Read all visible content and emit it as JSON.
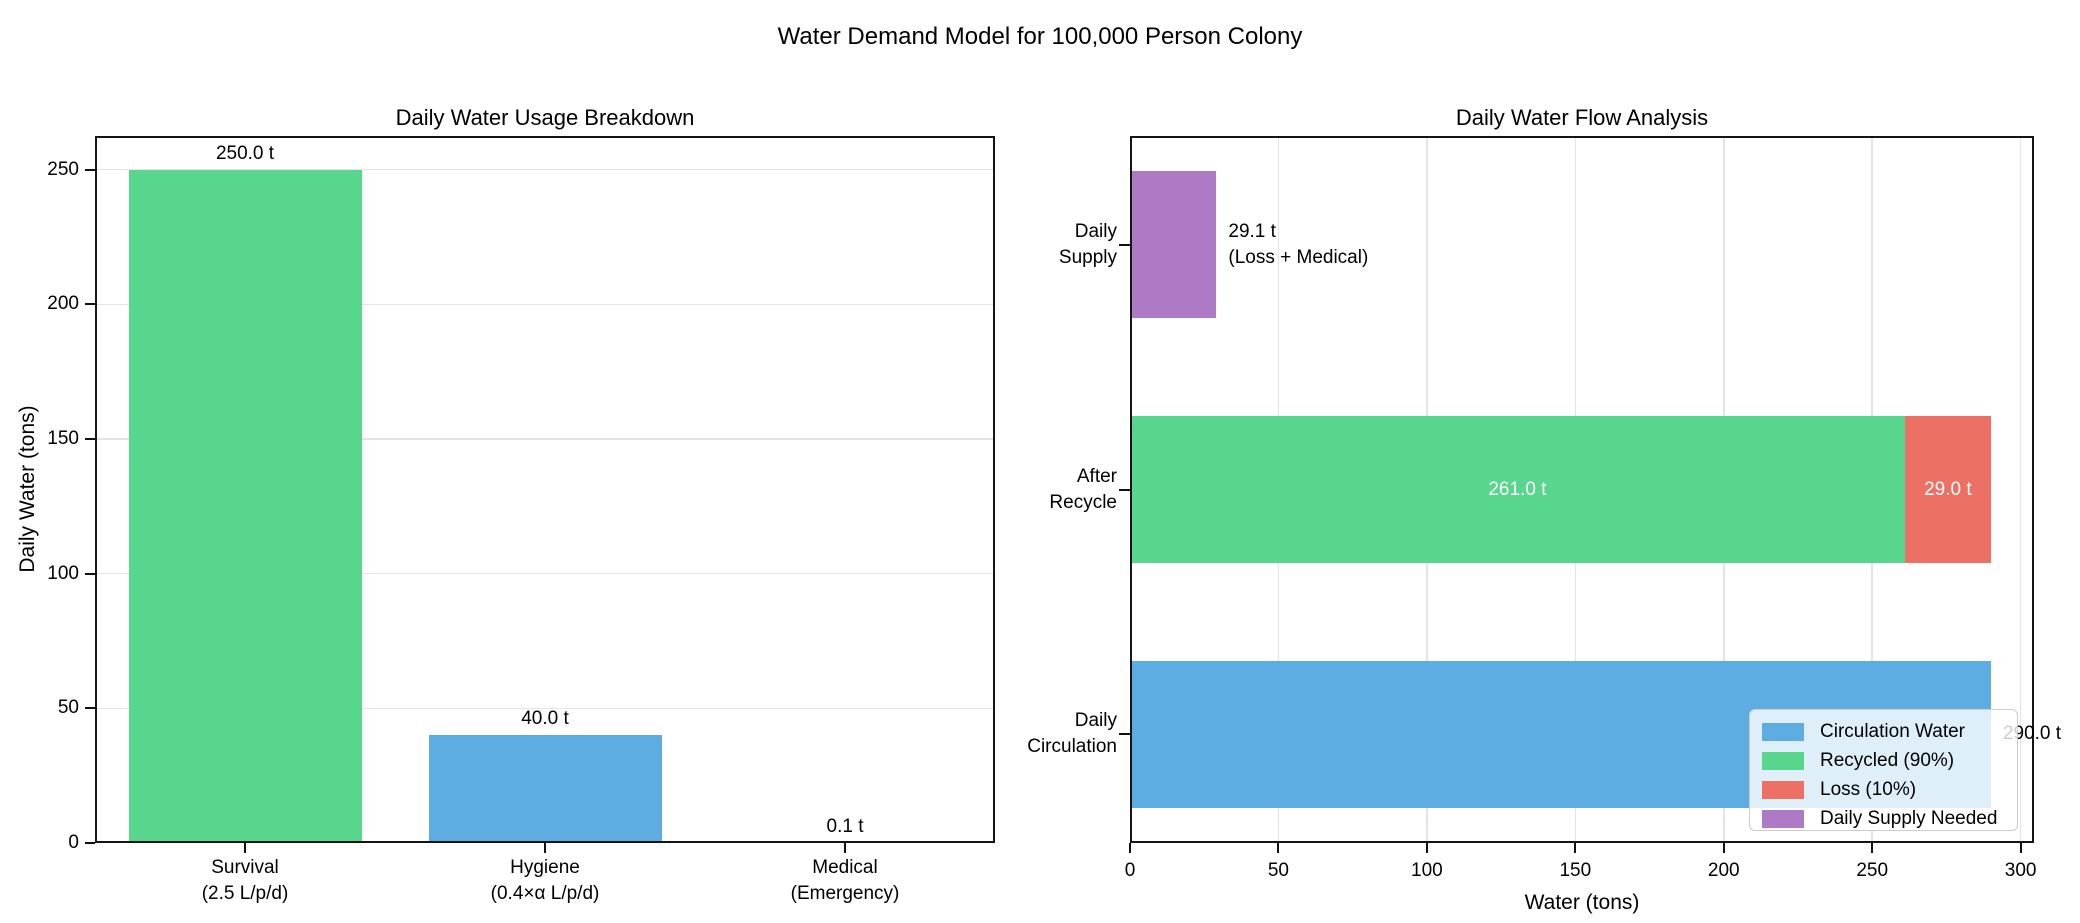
{
  "figure": {
    "title": "Water Demand Model for 100,000 Person Colony"
  },
  "style": {
    "grid_color": "#e4e4e4",
    "axis_color": "#111111",
    "legend_border": "#cccccc",
    "legend_background": "rgba(255,255,255,0.8)",
    "text_color": "#000000",
    "inside_label_color": "#ffffff"
  },
  "chart_data": [
    {
      "type": "bar",
      "title": "Daily Water Usage Breakdown",
      "xlabel": "",
      "ylabel": "Daily Water (tons)",
      "categories": [
        "Survival\n(2.5 L/p/d)",
        "Hygiene\n(0.4×α L/p/d)",
        "Medical\n(Emergency)"
      ],
      "values": [
        250.0,
        40.0,
        0.1
      ],
      "bar_labels": [
        "250.0 t",
        "40.0 t",
        "0.1 t"
      ],
      "bar_colors": [
        "#58D68D",
        "#5DADE2",
        null
      ],
      "yticks": [
        0,
        50,
        100,
        150,
        200,
        250
      ],
      "ylim": [
        0,
        262.5
      ],
      "grid": "horizontal",
      "legend_position": "none"
    },
    {
      "type": "bar-horizontal-stacked",
      "title": "Daily Water Flow Analysis",
      "xlabel": "Water (tons)",
      "ylabel": "",
      "categories": [
        "Daily\nCirculation",
        "After\nRecycle",
        "Daily\nSupply"
      ],
      "series": [
        {
          "name": "Circulation Water",
          "color": "#5DADE2",
          "values": [
            290.0,
            0,
            0
          ]
        },
        {
          "name": "Recycled (90%)",
          "color": "#58D68D",
          "values": [
            0,
            261.0,
            0
          ]
        },
        {
          "name": "Loss (10%)",
          "color": "#EC7063",
          "values": [
            0,
            29.0,
            0
          ]
        },
        {
          "name": "Daily Supply Needed",
          "color": "#AF7AC5",
          "values": [
            0,
            0,
            29.1
          ]
        }
      ],
      "labels": [
        {
          "text": "290.0 t",
          "category": 0,
          "series": 0,
          "placement": "outside-right",
          "color": "#000000"
        },
        {
          "text": "261.0 t",
          "category": 1,
          "series": 1,
          "placement": "inside",
          "color": "#ffffff"
        },
        {
          "text": "29.0 t",
          "category": 1,
          "series": 2,
          "placement": "inside",
          "color": "#ffffff"
        },
        {
          "text": "29.1 t\n(Loss + Medical)",
          "category": 2,
          "series": 3,
          "placement": "outside-right",
          "color": "#000000"
        }
      ],
      "xticks": [
        0,
        50,
        100,
        150,
        200,
        250,
        300
      ],
      "xlim": [
        0,
        304.5
      ],
      "grid": "vertical",
      "legend_position": "lower right"
    }
  ]
}
